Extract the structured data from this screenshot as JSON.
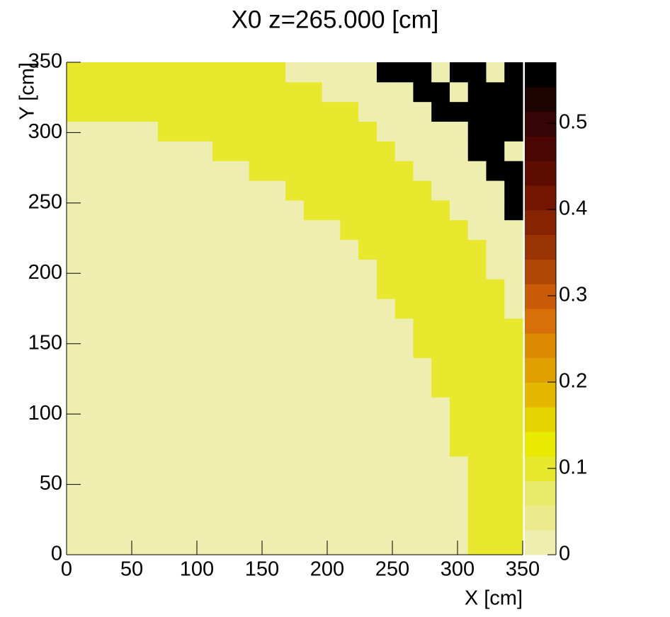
{
  "chart_data": {
    "type": "heatmap",
    "title": "X0 z=265.000 [cm]",
    "xlabel": "X [cm]",
    "ylabel": "Y [cm]",
    "xlim": [
      0,
      350
    ],
    "ylim": [
      0,
      350
    ],
    "xticks": [
      0,
      50,
      100,
      150,
      200,
      250,
      300,
      350
    ],
    "yticks": [
      0,
      50,
      100,
      150,
      200,
      250,
      300,
      350
    ],
    "zlim": [
      0,
      0.5705
    ],
    "zticks": [
      0,
      0.1,
      0.2,
      0.3,
      0.4,
      0.5
    ],
    "palette": [
      "#eeeeb0",
      "#ebeb8e",
      "#e9e96a",
      "#e8e82e",
      "#eaea00",
      "#e6d200",
      "#e4b800",
      "#e0a000",
      "#dc8a00",
      "#d8700a",
      "#c85a08",
      "#b04606",
      "#9a3404",
      "#862402",
      "#721600",
      "#5e0c00",
      "#4a0600",
      "#360404",
      "#1e0303",
      "#000000"
    ],
    "z": [
      [
        0.02,
        0.02,
        0.02,
        0.02,
        0.02,
        0.02,
        0.02,
        0.02,
        0.02,
        0.02,
        0.02,
        0.02,
        0.02,
        0.02,
        0.02,
        0.02,
        0.02,
        0.02,
        0.02,
        0.02,
        0.02,
        0.02,
        0.1,
        0.1,
        0.1
      ],
      [
        0.02,
        0.02,
        0.02,
        0.02,
        0.02,
        0.02,
        0.02,
        0.02,
        0.02,
        0.02,
        0.02,
        0.02,
        0.02,
        0.02,
        0.02,
        0.02,
        0.02,
        0.02,
        0.02,
        0.02,
        0.02,
        0.02,
        0.1,
        0.1,
        0.1
      ],
      [
        0.02,
        0.02,
        0.02,
        0.02,
        0.02,
        0.02,
        0.02,
        0.02,
        0.02,
        0.02,
        0.02,
        0.02,
        0.02,
        0.02,
        0.02,
        0.02,
        0.02,
        0.02,
        0.02,
        0.02,
        0.02,
        0.02,
        0.1,
        0.1,
        0.1
      ],
      [
        0.02,
        0.02,
        0.02,
        0.02,
        0.02,
        0.02,
        0.02,
        0.02,
        0.02,
        0.02,
        0.02,
        0.02,
        0.02,
        0.02,
        0.02,
        0.02,
        0.02,
        0.02,
        0.02,
        0.02,
        0.02,
        0.02,
        0.1,
        0.1,
        0.1
      ],
      [
        0.02,
        0.02,
        0.02,
        0.02,
        0.02,
        0.02,
        0.02,
        0.02,
        0.02,
        0.02,
        0.02,
        0.02,
        0.02,
        0.02,
        0.02,
        0.02,
        0.02,
        0.02,
        0.02,
        0.02,
        0.02,
        0.02,
        0.1,
        0.1,
        0.1
      ],
      [
        0.02,
        0.02,
        0.02,
        0.02,
        0.02,
        0.02,
        0.02,
        0.02,
        0.02,
        0.02,
        0.02,
        0.02,
        0.02,
        0.02,
        0.02,
        0.02,
        0.02,
        0.02,
        0.02,
        0.02,
        0.02,
        0.1,
        0.1,
        0.1,
        0.1
      ],
      [
        0.02,
        0.02,
        0.02,
        0.02,
        0.02,
        0.02,
        0.02,
        0.02,
        0.02,
        0.02,
        0.02,
        0.02,
        0.02,
        0.02,
        0.02,
        0.02,
        0.02,
        0.02,
        0.02,
        0.02,
        0.02,
        0.1,
        0.1,
        0.1,
        0.1
      ],
      [
        0.02,
        0.02,
        0.02,
        0.02,
        0.02,
        0.02,
        0.02,
        0.02,
        0.02,
        0.02,
        0.02,
        0.02,
        0.02,
        0.02,
        0.02,
        0.02,
        0.02,
        0.02,
        0.02,
        0.02,
        0.02,
        0.1,
        0.1,
        0.1,
        0.1
      ],
      [
        0.02,
        0.02,
        0.02,
        0.02,
        0.02,
        0.02,
        0.02,
        0.02,
        0.02,
        0.02,
        0.02,
        0.02,
        0.02,
        0.02,
        0.02,
        0.02,
        0.02,
        0.02,
        0.02,
        0.02,
        0.1,
        0.1,
        0.1,
        0.1,
        0.1
      ],
      [
        0.02,
        0.02,
        0.02,
        0.02,
        0.02,
        0.02,
        0.02,
        0.02,
        0.02,
        0.02,
        0.02,
        0.02,
        0.02,
        0.02,
        0.02,
        0.02,
        0.02,
        0.02,
        0.02,
        0.02,
        0.1,
        0.1,
        0.1,
        0.1,
        0.1
      ],
      [
        0.02,
        0.02,
        0.02,
        0.02,
        0.02,
        0.02,
        0.02,
        0.02,
        0.02,
        0.02,
        0.02,
        0.02,
        0.02,
        0.02,
        0.02,
        0.02,
        0.02,
        0.02,
        0.02,
        0.1,
        0.1,
        0.1,
        0.1,
        0.1,
        0.1
      ],
      [
        0.02,
        0.02,
        0.02,
        0.02,
        0.02,
        0.02,
        0.02,
        0.02,
        0.02,
        0.02,
        0.02,
        0.02,
        0.02,
        0.02,
        0.02,
        0.02,
        0.02,
        0.02,
        0.02,
        0.1,
        0.1,
        0.1,
        0.1,
        0.1,
        0.1
      ],
      [
        0.02,
        0.02,
        0.02,
        0.02,
        0.02,
        0.02,
        0.02,
        0.02,
        0.02,
        0.02,
        0.02,
        0.02,
        0.02,
        0.02,
        0.02,
        0.02,
        0.02,
        0.02,
        0.1,
        0.1,
        0.1,
        0.1,
        0.1,
        0.1,
        0.025
      ],
      [
        0.02,
        0.02,
        0.02,
        0.02,
        0.02,
        0.02,
        0.02,
        0.02,
        0.02,
        0.02,
        0.02,
        0.02,
        0.02,
        0.02,
        0.02,
        0.02,
        0.02,
        0.1,
        0.1,
        0.1,
        0.1,
        0.1,
        0.1,
        0.1,
        0.025
      ],
      [
        0.02,
        0.02,
        0.02,
        0.02,
        0.02,
        0.02,
        0.02,
        0.02,
        0.02,
        0.02,
        0.02,
        0.02,
        0.02,
        0.02,
        0.02,
        0.02,
        0.02,
        0.1,
        0.1,
        0.1,
        0.1,
        0.1,
        0.1,
        0.025,
        0.025
      ],
      [
        0.02,
        0.02,
        0.02,
        0.02,
        0.02,
        0.02,
        0.02,
        0.02,
        0.02,
        0.02,
        0.02,
        0.02,
        0.02,
        0.02,
        0.02,
        0.02,
        0.1,
        0.1,
        0.1,
        0.1,
        0.1,
        0.1,
        0.1,
        0.025,
        0.025
      ],
      [
        0.02,
        0.02,
        0.02,
        0.02,
        0.02,
        0.02,
        0.02,
        0.02,
        0.02,
        0.02,
        0.02,
        0.02,
        0.02,
        0.02,
        0.02,
        0.1,
        0.1,
        0.1,
        0.1,
        0.1,
        0.1,
        0.1,
        0.025,
        0.025,
        0.025
      ],
      [
        0.02,
        0.02,
        0.02,
        0.02,
        0.02,
        0.02,
        0.02,
        0.02,
        0.02,
        0.02,
        0.02,
        0.02,
        0.02,
        0.1,
        0.1,
        0.1,
        0.1,
        0.1,
        0.1,
        0.1,
        0.1,
        0.025,
        0.025,
        0.025,
        0.56
      ],
      [
        0.02,
        0.02,
        0.02,
        0.02,
        0.02,
        0.02,
        0.02,
        0.02,
        0.02,
        0.02,
        0.02,
        0.02,
        0.1,
        0.1,
        0.1,
        0.1,
        0.1,
        0.1,
        0.1,
        0.1,
        0.025,
        0.025,
        0.025,
        0.025,
        0.56
      ],
      [
        0.02,
        0.02,
        0.02,
        0.02,
        0.02,
        0.02,
        0.02,
        0.02,
        0.02,
        0.02,
        0.1,
        0.1,
        0.1,
        0.1,
        0.1,
        0.1,
        0.1,
        0.1,
        0.1,
        0.025,
        0.025,
        0.025,
        0.025,
        0.56,
        0.56
      ],
      [
        0.02,
        0.02,
        0.02,
        0.02,
        0.02,
        0.02,
        0.02,
        0.02,
        0.1,
        0.1,
        0.1,
        0.1,
        0.1,
        0.1,
        0.1,
        0.1,
        0.1,
        0.1,
        0.025,
        0.025,
        0.025,
        0.025,
        0.56,
        0.56,
        0.025
      ],
      [
        0.02,
        0.02,
        0.02,
        0.02,
        0.02,
        0.1,
        0.1,
        0.1,
        0.1,
        0.1,
        0.1,
        0.1,
        0.1,
        0.1,
        0.1,
        0.1,
        0.1,
        0.025,
        0.025,
        0.025,
        0.025,
        0.025,
        0.56,
        0.56,
        0.56
      ],
      [
        0.1,
        0.1,
        0.1,
        0.1,
        0.1,
        0.1,
        0.1,
        0.1,
        0.1,
        0.1,
        0.1,
        0.1,
        0.1,
        0.1,
        0.1,
        0.1,
        0.025,
        0.025,
        0.025,
        0.025,
        0.56,
        0.56,
        0.56,
        0.56,
        0.56
      ],
      [
        0.1,
        0.1,
        0.1,
        0.1,
        0.1,
        0.1,
        0.1,
        0.1,
        0.1,
        0.1,
        0.1,
        0.1,
        0.1,
        0.1,
        0.025,
        0.025,
        0.025,
        0.025,
        0.025,
        0.56,
        0.56,
        0.025,
        0.56,
        0.56,
        0.56
      ],
      [
        0.1,
        0.1,
        0.1,
        0.1,
        0.1,
        0.1,
        0.1,
        0.1,
        0.1,
        0.1,
        0.1,
        0.1,
        0.025,
        0.025,
        0.025,
        0.025,
        0.025,
        0.56,
        0.56,
        0.56,
        0.025,
        0.56,
        0.56,
        0.025,
        0.56
      ]
    ]
  }
}
